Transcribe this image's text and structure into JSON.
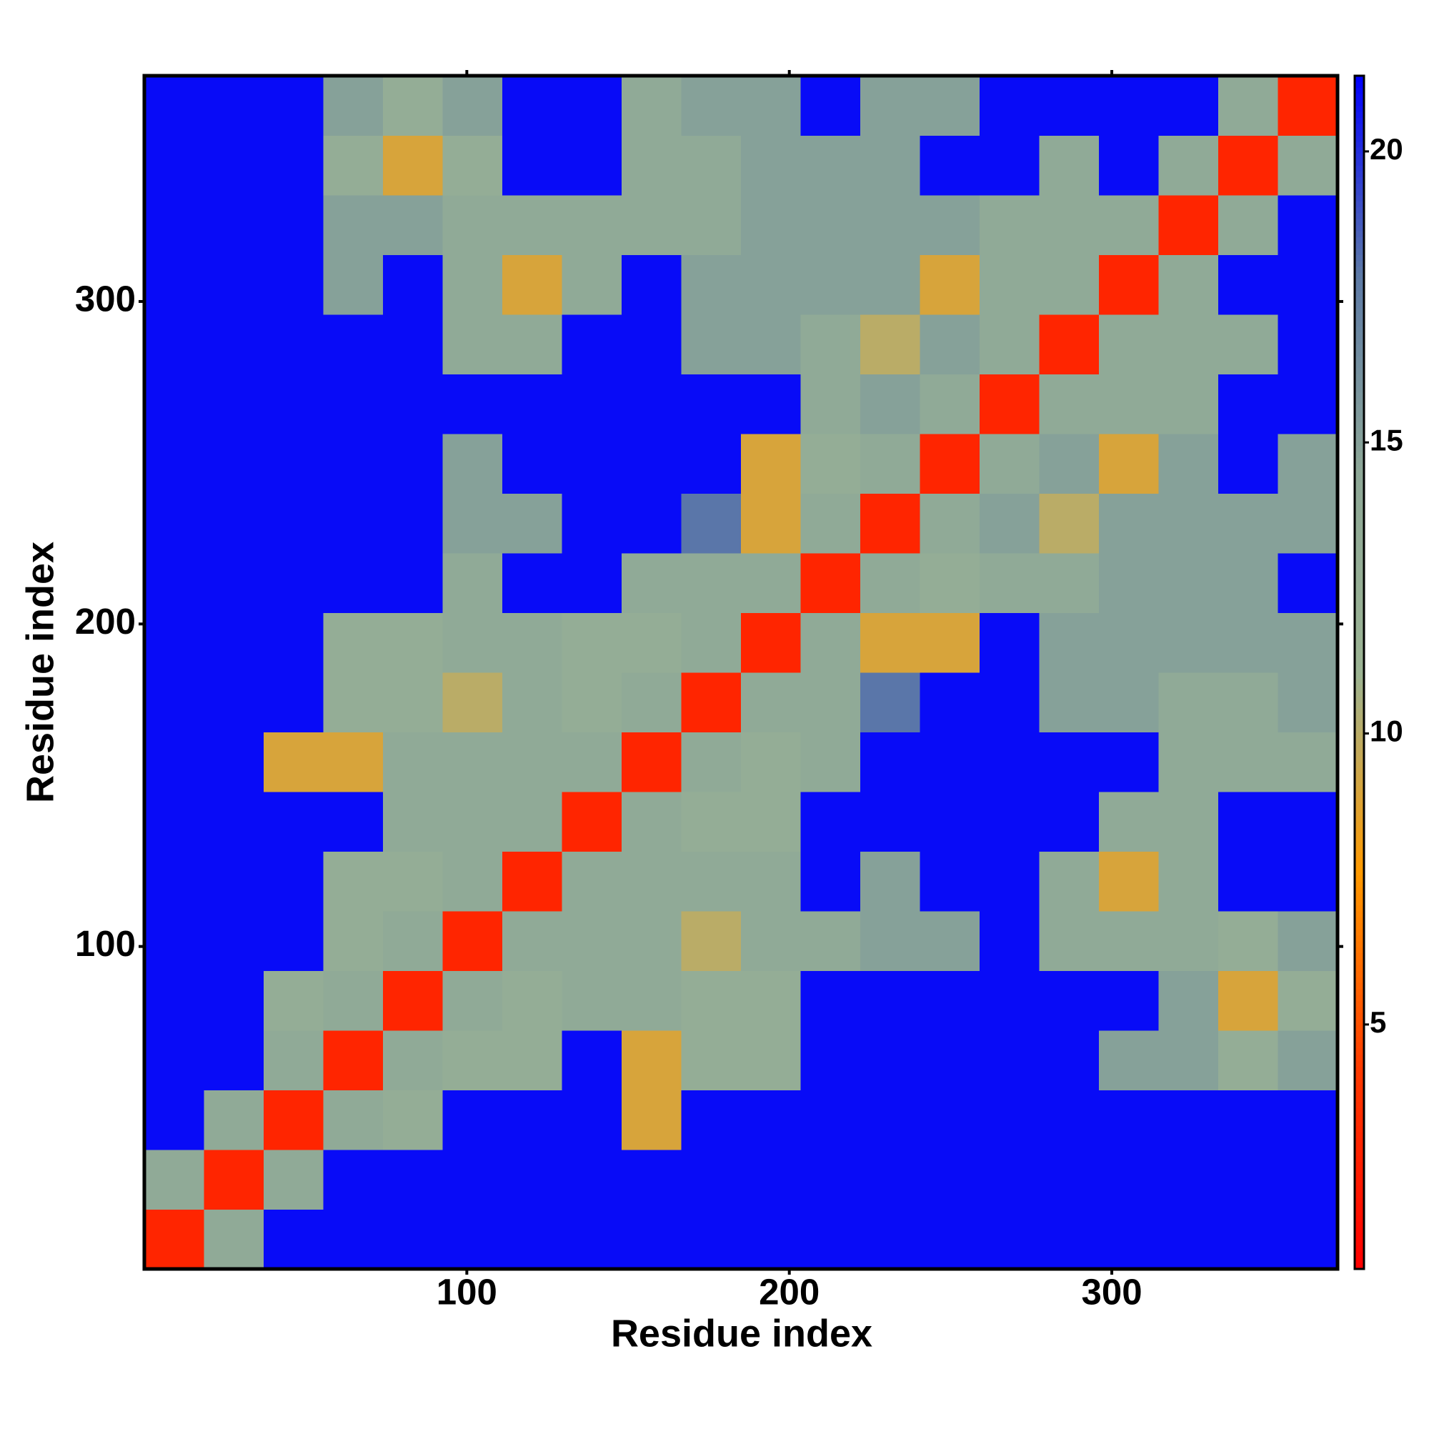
{
  "chart_data": {
    "type": "heatmap",
    "x_label": "Residue index",
    "y_label": "Residue index",
    "xlim": [
      0,
      370
    ],
    "ylim": [
      0,
      370
    ],
    "xticks": [
      100,
      200,
      300
    ],
    "yticks": [
      100,
      200,
      300
    ],
    "xbins": [
      0,
      18.5,
      37,
      55.5,
      74,
      92.5,
      111,
      129.5,
      148,
      166.5,
      185,
      203.5,
      222,
      240.5,
      259,
      277.5,
      296,
      314.5,
      333,
      351.5,
      370
    ],
    "ybins": [
      0,
      18.5,
      37,
      55.5,
      74,
      92.5,
      111,
      129.5,
      148,
      166.5,
      185,
      203.5,
      222,
      240.5,
      259,
      277.5,
      296,
      314.5,
      333,
      351.5,
      370
    ],
    "values": [
      [
        3,
        14,
        21,
        21,
        21,
        21,
        21,
        21,
        21,
        21,
        21,
        21,
        21,
        21,
        21,
        21,
        21,
        21,
        21,
        21
      ],
      [
        14,
        3,
        14,
        21,
        21,
        21,
        21,
        21,
        21,
        21,
        21,
        21,
        21,
        21,
        21,
        21,
        21,
        21,
        21,
        21
      ],
      [
        21,
        14,
        3,
        14,
        13,
        21,
        21,
        21,
        9,
        21,
        21,
        21,
        21,
        21,
        21,
        21,
        21,
        21,
        21,
        21
      ],
      [
        21,
        21,
        14,
        3,
        14,
        13,
        13,
        21,
        9,
        13,
        13,
        21,
        21,
        21,
        21,
        21,
        15,
        15,
        13,
        15
      ],
      [
        21,
        21,
        13,
        14,
        3,
        14,
        13,
        14,
        14,
        13,
        13,
        21,
        21,
        21,
        21,
        21,
        21,
        15,
        9,
        13
      ],
      [
        21,
        21,
        21,
        13,
        14,
        3,
        14,
        14,
        14,
        10,
        14,
        14,
        15,
        15,
        21,
        14,
        14,
        14,
        13,
        15
      ],
      [
        21,
        21,
        21,
        13,
        13,
        14,
        3,
        14,
        14,
        14,
        14,
        21,
        15,
        21,
        21,
        14,
        9,
        14,
        21,
        21
      ],
      [
        21,
        21,
        21,
        21,
        14,
        14,
        14,
        3,
        14,
        13,
        13,
        21,
        21,
        21,
        21,
        21,
        14,
        14,
        21,
        21
      ],
      [
        21,
        21,
        9,
        9,
        14,
        14,
        14,
        14,
        3,
        14,
        13,
        14,
        21,
        21,
        21,
        21,
        21,
        14,
        14,
        14
      ],
      [
        21,
        21,
        21,
        13,
        13,
        10,
        14,
        13,
        14,
        3,
        14,
        14,
        18,
        21,
        21,
        15,
        15,
        14,
        14,
        15
      ],
      [
        21,
        21,
        21,
        13,
        13,
        14,
        14,
        13,
        13,
        14,
        3,
        14,
        9,
        9,
        21,
        15,
        15,
        15,
        15,
        15
      ],
      [
        21,
        21,
        21,
        21,
        21,
        14,
        21,
        21,
        14,
        14,
        14,
        3,
        14,
        13,
        14,
        14,
        15,
        15,
        15,
        21
      ],
      [
        21,
        21,
        21,
        21,
        21,
        15,
        15,
        21,
        21,
        18,
        9,
        14,
        3,
        14,
        15,
        10,
        15,
        15,
        15,
        15
      ],
      [
        21,
        21,
        21,
        21,
        21,
        15,
        21,
        21,
        21,
        21,
        9,
        13,
        14,
        3,
        14,
        15,
        9,
        15,
        21,
        15
      ],
      [
        21,
        21,
        21,
        21,
        21,
        21,
        21,
        21,
        21,
        21,
        21,
        14,
        15,
        14,
        3,
        14,
        14,
        14,
        21,
        21
      ],
      [
        21,
        21,
        21,
        21,
        21,
        14,
        14,
        21,
        21,
        15,
        15,
        14,
        10,
        15,
        14,
        3,
        14,
        14,
        14,
        21
      ],
      [
        21,
        21,
        21,
        15,
        21,
        14,
        9,
        14,
        21,
        15,
        15,
        15,
        15,
        9,
        14,
        14,
        3,
        14,
        21,
        21
      ],
      [
        21,
        21,
        21,
        15,
        15,
        14,
        14,
        14,
        14,
        14,
        15,
        15,
        15,
        15,
        14,
        14,
        14,
        3,
        14,
        21
      ],
      [
        21,
        21,
        21,
        13,
        9,
        13,
        21,
        21,
        14,
        14,
        15,
        15,
        15,
        21,
        21,
        14,
        21,
        14,
        3,
        14
      ],
      [
        21,
        21,
        21,
        15,
        13,
        15,
        21,
        21,
        14,
        15,
        15,
        21,
        15,
        15,
        21,
        21,
        21,
        21,
        14,
        3
      ]
    ],
    "colors": [
      "#ff0000",
      "#ff3a00",
      "#ff9a00",
      "#9cb494",
      "#8ea897",
      "#5d7aa6",
      "#0000ff"
    ],
    "zlim": [
      0.8,
      21.3
    ],
    "zticks": [
      5,
      10,
      15,
      20
    ]
  }
}
